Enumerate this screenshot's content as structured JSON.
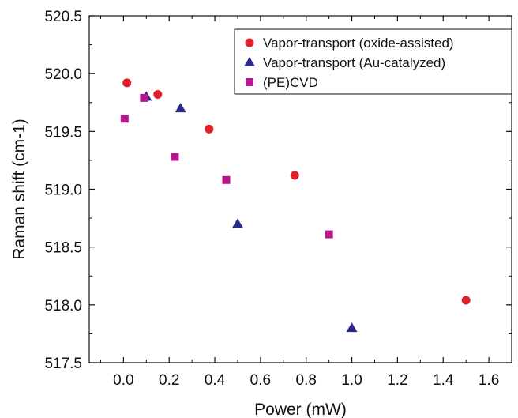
{
  "chart_data": {
    "type": "scatter",
    "title": "",
    "xlabel": "Power (mW)",
    "ylabel": "Raman shift (cm-1)",
    "xlim": [
      -0.15,
      1.7
    ],
    "ylim": [
      517.5,
      520.5
    ],
    "x_ticks": [
      0.0,
      0.2,
      0.4,
      0.6,
      0.8,
      1.0,
      1.2,
      1.4,
      1.6
    ],
    "x_tick_labels": [
      "0.0",
      "0.2",
      "0.4",
      "0.6",
      "0.8",
      "1.0",
      "1.2",
      "1.4",
      "1.6"
    ],
    "y_ticks": [
      517.5,
      518.0,
      518.5,
      519.0,
      519.5,
      520.0,
      520.5
    ],
    "y_tick_labels": [
      "517.5",
      "518.0",
      "518.5",
      "519.0",
      "519.5",
      "520.0",
      "520.5"
    ],
    "grid": false,
    "legend_position": "top-right",
    "series": [
      {
        "name": "Vapor-transport (oxide-assisted)",
        "marker": "circle",
        "color": "#e0202a",
        "points": [
          [
            0.015,
            519.92
          ],
          [
            0.15,
            519.82
          ],
          [
            0.375,
            519.52
          ],
          [
            0.75,
            519.12
          ],
          [
            1.5,
            518.04
          ]
        ]
      },
      {
        "name": "Vapor-transport (Au-catalyzed)",
        "marker": "triangle",
        "color": "#2a2a8c",
        "points": [
          [
            0.1,
            519.8
          ],
          [
            0.25,
            519.7
          ],
          [
            0.5,
            518.7
          ],
          [
            1.0,
            517.8
          ]
        ]
      },
      {
        "name": "(PE)CVD",
        "marker": "square",
        "color": "#b5158f",
        "points": [
          [
            0.005,
            519.61
          ],
          [
            0.09,
            519.79
          ],
          [
            0.225,
            519.28
          ],
          [
            0.45,
            519.08
          ],
          [
            0.9,
            518.61
          ]
        ]
      }
    ]
  }
}
